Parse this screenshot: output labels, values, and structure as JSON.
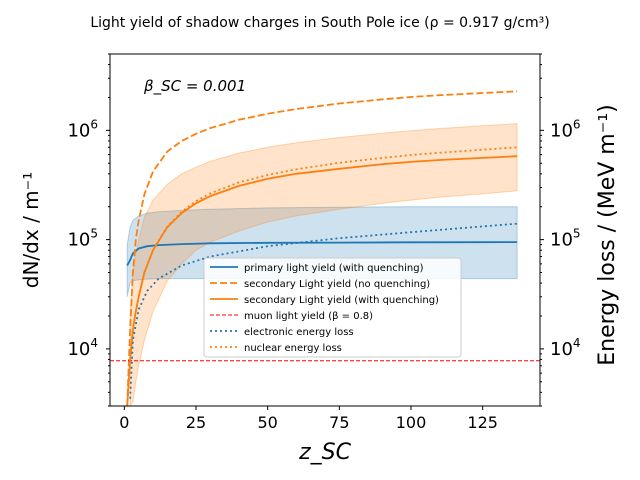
{
  "chart_data": {
    "type": "line",
    "title": "Light yield of shadow charges in South Pole ice (ρ = 0.917 g/cm³)",
    "annotation": "β_SC = 0.001",
    "xlabel": "z_SC",
    "ylabel_left": "dN/dx / m⁻¹",
    "ylabel_right": "Energy loss / (MeV m⁻¹)",
    "xlim": [
      -5,
      145
    ],
    "ylim": [
      3000,
      5000000
    ],
    "yscale": "log",
    "xticks": [
      0,
      25,
      50,
      75,
      100,
      125
    ],
    "yticks": [
      10000,
      100000,
      1000000
    ],
    "ytick_labels": [
      "10^4",
      "10^5",
      "10^6"
    ],
    "legend_position": "center-right",
    "colors": {
      "blue": "#1f77b4",
      "orange": "#ff7f0e",
      "red": "#ff0000"
    },
    "series": [
      {
        "name": "primary light yield (with quenching)",
        "style": "solid",
        "color": "#1f77b4",
        "x": [
          1,
          2,
          3,
          5,
          8,
          12,
          20,
          30,
          50,
          75,
          100,
          125,
          137
        ],
        "y": [
          58000,
          65000,
          75000,
          83000,
          87000,
          89000,
          91000,
          92500,
          93500,
          94000,
          94500,
          94800,
          95000
        ]
      },
      {
        "name": "secondary Light yield (no quenching)",
        "style": "dashed",
        "color": "#ff7f0e",
        "x": [
          1,
          2,
          3,
          4,
          5,
          7,
          10,
          15,
          20,
          25,
          30,
          40,
          50,
          60,
          75,
          90,
          100,
          110,
          125,
          137
        ],
        "y": [
          3000,
          15000,
          50000,
          100000,
          150000,
          260000,
          420000,
          640000,
          800000,
          930000,
          1050000,
          1250000,
          1420000,
          1570000,
          1760000,
          1920000,
          2020000,
          2100000,
          2200000,
          2280000
        ]
      },
      {
        "name": "secondary Light yield (with quenching)",
        "style": "solid",
        "color": "#ff7f0e",
        "x": [
          1,
          2,
          3,
          4,
          5,
          7,
          10,
          15,
          20,
          25,
          30,
          40,
          50,
          60,
          75,
          90,
          100,
          110,
          125,
          137
        ],
        "y": [
          3000,
          8000,
          15000,
          22000,
          30000,
          50000,
          80000,
          130000,
          175000,
          215000,
          250000,
          310000,
          360000,
          400000,
          445000,
          490000,
          515000,
          535000,
          560000,
          580000
        ]
      },
      {
        "name": "muon light yield (β = 0.8)",
        "style": "dashed",
        "color": "#ff0000",
        "x": [
          -5,
          145
        ],
        "y": [
          7800,
          7800
        ]
      },
      {
        "name": "electronic energy loss",
        "style": "dotted",
        "color": "#1f77b4",
        "x": [
          2,
          3,
          5,
          8,
          12,
          20,
          30,
          50,
          75,
          100,
          125,
          137
        ],
        "y": [
          3500,
          12000,
          23000,
          34000,
          44000,
          58000,
          70000,
          87000,
          103000,
          117000,
          132000,
          140000
        ]
      },
      {
        "name": "nuclear energy loss",
        "style": "dotted",
        "color": "#ff7f0e",
        "x": [
          1,
          2,
          3,
          4,
          5,
          7,
          10,
          15,
          20,
          25,
          30,
          40,
          50,
          60,
          75,
          90,
          100,
          110,
          125,
          137
        ],
        "y": [
          3000,
          8000,
          15000,
          22000,
          30000,
          50000,
          80000,
          132000,
          180000,
          225000,
          265000,
          335000,
          390000,
          440000,
          505000,
          560000,
          595000,
          625000,
          665000,
          700000
        ]
      }
    ],
    "bands": [
      {
        "color": "#1f77b4",
        "x": [
          1,
          2,
          3,
          5,
          8,
          12,
          20,
          30,
          50,
          75,
          100,
          125,
          137
        ],
        "lower": [
          30000,
          40000,
          42000,
          43000,
          43500,
          44000,
          44000,
          44000,
          44000,
          44000,
          44000,
          44000,
          44000
        ],
        "upper": [
          90000,
          130000,
          150000,
          165000,
          175000,
          180000,
          185000,
          190000,
          195000,
          198000,
          200000,
          200000,
          200000
        ]
      },
      {
        "color": "#ff7f0e",
        "x": [
          2,
          3,
          4,
          5,
          7,
          10,
          15,
          20,
          25,
          30,
          40,
          50,
          60,
          75,
          90,
          100,
          110,
          125,
          137
        ],
        "lower": [
          3000,
          3300,
          5000,
          7000,
          12000,
          22000,
          42000,
          60000,
          80000,
          95000,
          120000,
          145000,
          165000,
          190000,
          215000,
          230000,
          245000,
          262000,
          280000
        ],
        "upper": [
          20000,
          50000,
          75000,
          100000,
          160000,
          230000,
          320000,
          400000,
          460000,
          520000,
          620000,
          700000,
          770000,
          860000,
          940000,
          990000,
          1040000,
          1100000,
          1150000
        ]
      }
    ]
  }
}
